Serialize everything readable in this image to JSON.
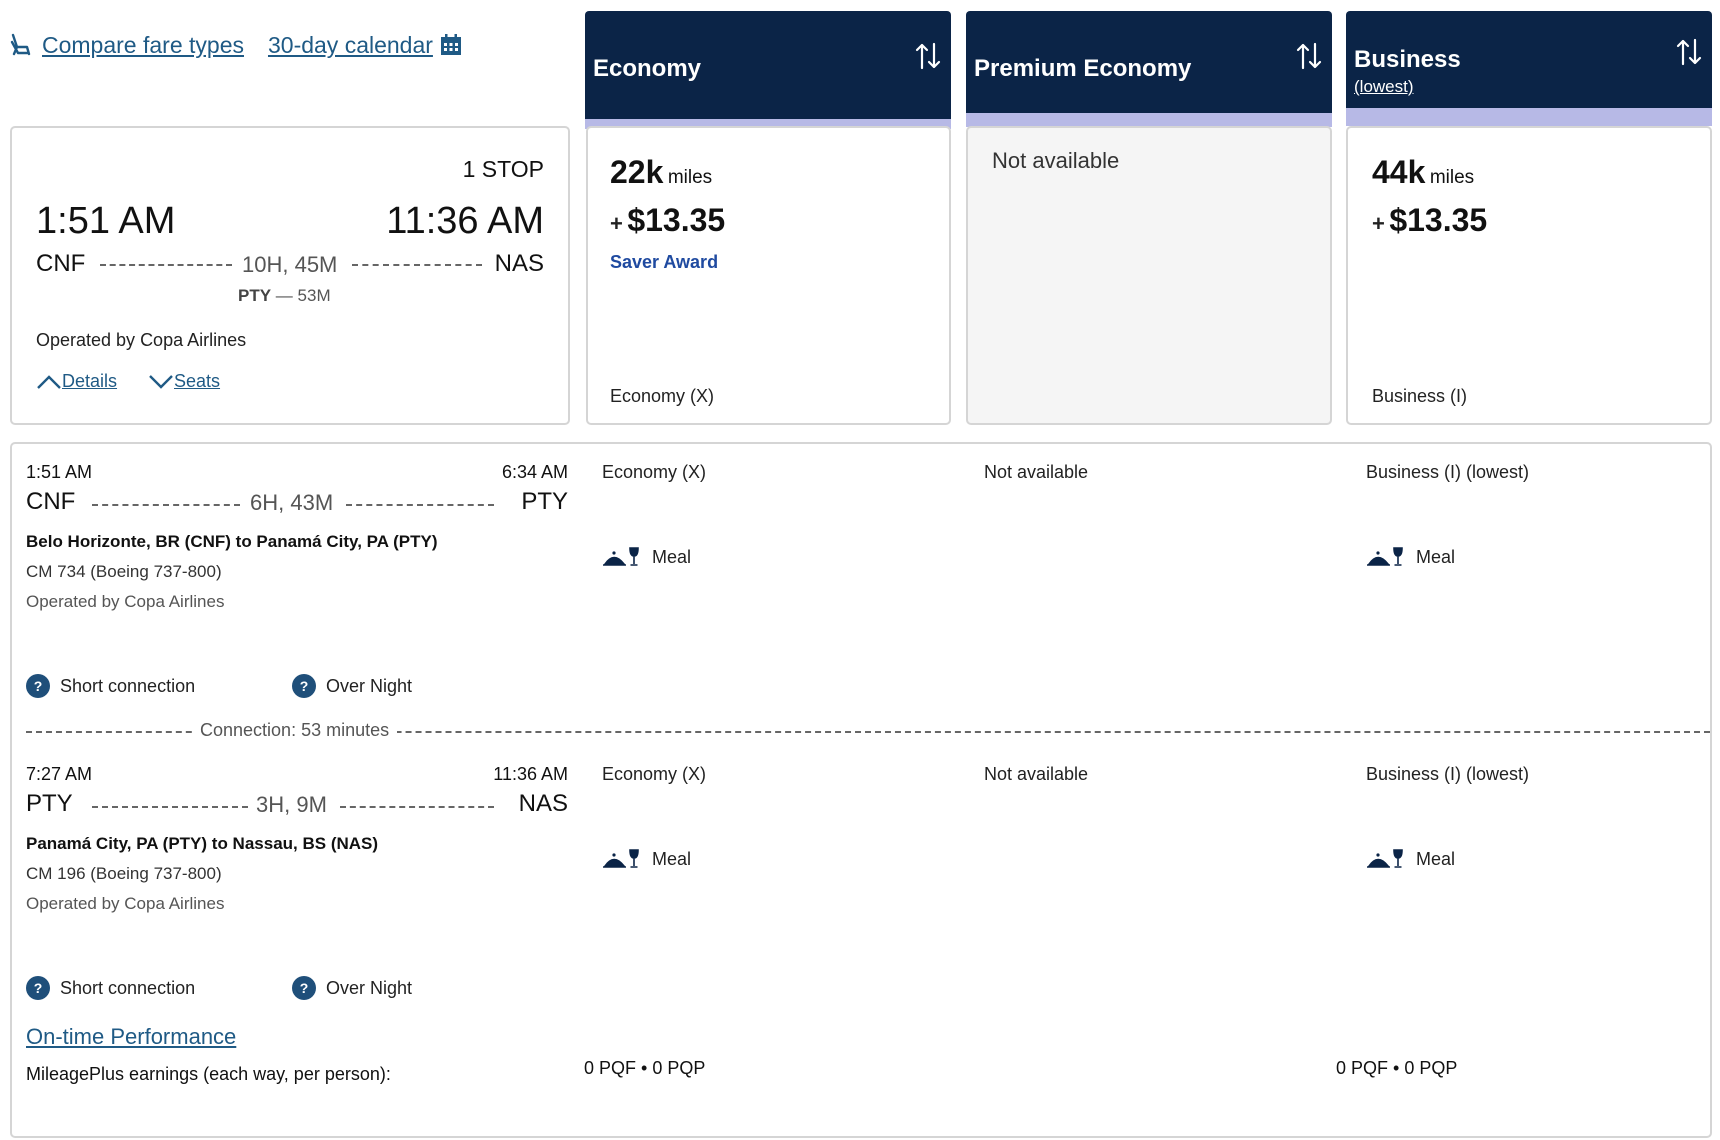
{
  "top_links": {
    "compare_fare_types": "Compare fare types",
    "calendar": "30-day calendar"
  },
  "columns": [
    {
      "name": "Economy",
      "sub": ""
    },
    {
      "name": "Premium Economy",
      "sub": ""
    },
    {
      "name": "Business",
      "sub": "(lowest)"
    }
  ],
  "fares": {
    "economy": {
      "miles": "22k",
      "miles_word": "miles",
      "plus": "+",
      "price": "$13.35",
      "award": "Saver Award",
      "fare_class": "Economy (X)"
    },
    "premium": {
      "status": "Not available"
    },
    "business": {
      "miles": "44k",
      "miles_word": "miles",
      "plus": "+",
      "price": "$13.35",
      "fare_class": "Business (I)"
    }
  },
  "summary": {
    "stops": "1 STOP",
    "depart_time": "1:51 AM",
    "arrive_time": "11:36 AM",
    "origin": "CNF",
    "destination": "NAS",
    "duration": "10H, 45M",
    "layover_code": "PTY",
    "layover_sep": "—",
    "layover_time": "53M",
    "operated": "Operated by Copa Airlines",
    "details_link": "Details",
    "seats_link": "Seats"
  },
  "segments": [
    {
      "depart_time": "1:51 AM",
      "arrive_time": "6:34 AM",
      "origin": "CNF",
      "destination": "PTY",
      "duration": "6H, 43M",
      "route": "Belo Horizonte, BR (CNF) to Panamá City, PA (PTY)",
      "flight": "CM 734 (Boeing 737-800)",
      "operated": "Operated by Copa Airlines",
      "economy": "Economy (X)",
      "premium": "Not available",
      "business": "Business (I) (lowest)",
      "meal": "Meal",
      "badges": [
        "Short connection",
        "Over Night"
      ]
    },
    {
      "depart_time": "7:27 AM",
      "arrive_time": "11:36 AM",
      "origin": "PTY",
      "destination": "NAS",
      "duration": "3H, 9M",
      "route": "Panamá City, PA (PTY) to Nassau, BS (NAS)",
      "flight": "CM 196 (Boeing 737-800)",
      "operated": "Operated by Copa Airlines",
      "economy": "Economy (X)",
      "premium": "Not available",
      "business": "Business (I) (lowest)",
      "meal": "Meal",
      "badges": [
        "Short connection",
        "Over Night"
      ]
    }
  ],
  "connection": "Connection: 53 minutes",
  "footer": {
    "ontime": "On-time Performance",
    "earnings_label": "MileagePlus earnings (each way, per person):",
    "economy_pqf": "0 PQF",
    "economy_pqp": "0 PQP",
    "business_pqf": "0 PQF",
    "business_pqp": "0 PQP",
    "dot": "•"
  },
  "icons": {
    "seat": "seat-icon",
    "calendar": "calendar-icon",
    "sort": "sort-arrows-icon",
    "meal": "meal-icon",
    "help": "question-icon",
    "chevron_up": "chevron-up-icon",
    "chevron_down": "chevron-down-icon"
  },
  "colors": {
    "header_bg": "#0b2447",
    "header_bar": "#b7b9e6",
    "link": "#1f5a85",
    "saver": "#1f4aa0"
  }
}
